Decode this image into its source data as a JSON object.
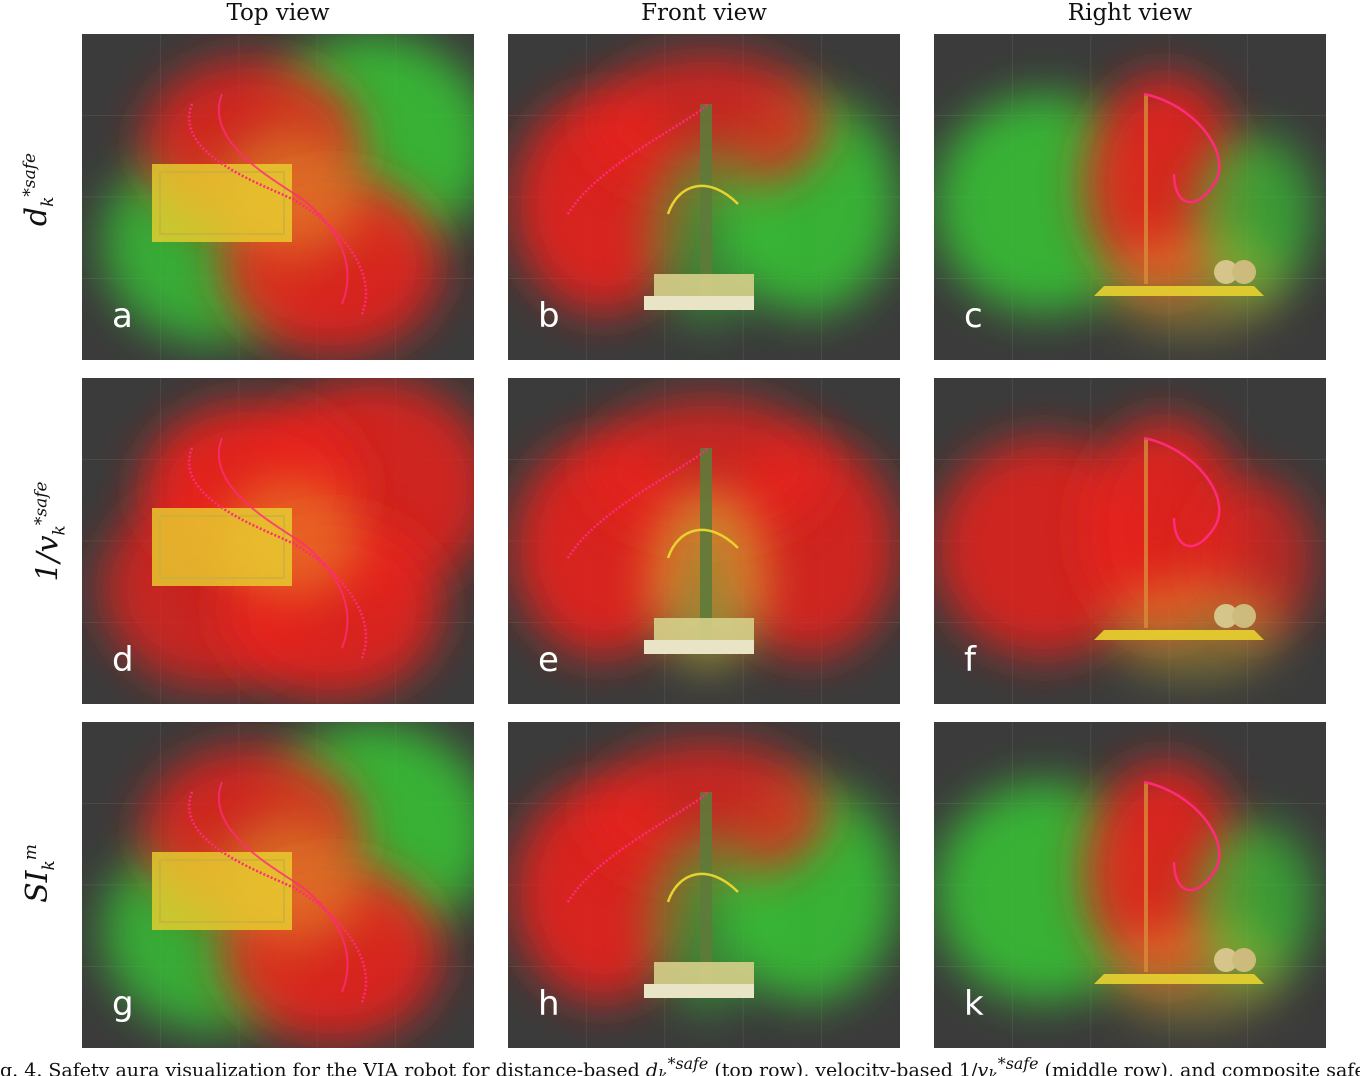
{
  "columns": [
    "Top view",
    "Front view",
    "Right view"
  ],
  "rows": [
    {
      "label_base": "d",
      "label_sub": "k",
      "label_sup": "*safe",
      "label_prefix": ""
    },
    {
      "label_base": "v",
      "label_sub": "k",
      "label_sup": "*safe",
      "label_prefix": "1/"
    },
    {
      "label_base": "SI",
      "label_sub": "k",
      "label_sup": "m",
      "label_prefix": ""
    }
  ],
  "panels": [
    {
      "letter": "a",
      "view": "top"
    },
    {
      "letter": "b",
      "view": "front"
    },
    {
      "letter": "c",
      "view": "right"
    },
    {
      "letter": "d",
      "view": "top"
    },
    {
      "letter": "e",
      "view": "front"
    },
    {
      "letter": "f",
      "view": "right"
    },
    {
      "letter": "g",
      "view": "top"
    },
    {
      "letter": "h",
      "view": "front"
    },
    {
      "letter": "k",
      "view": "right"
    }
  ],
  "caption": {
    "part1": "g. 4.   Safety aura visualization for the VIA robot for distance-based ",
    "sym1": "d",
    "sym1_sub": "k",
    "sym1_sup": "*safe",
    "part2": " (top row), velocity-based 1/",
    "sym2": "v",
    "sym2_sub": "k",
    "sym2_sup": "*safe",
    "part3": " (middle row), and composite safety-ind"
  },
  "colors": {
    "panel_bg": "#3b3b3b",
    "red": "#e8241c",
    "green": "#39c636",
    "yellow": "#e8d230",
    "trajectory": "#ff2a7a"
  }
}
